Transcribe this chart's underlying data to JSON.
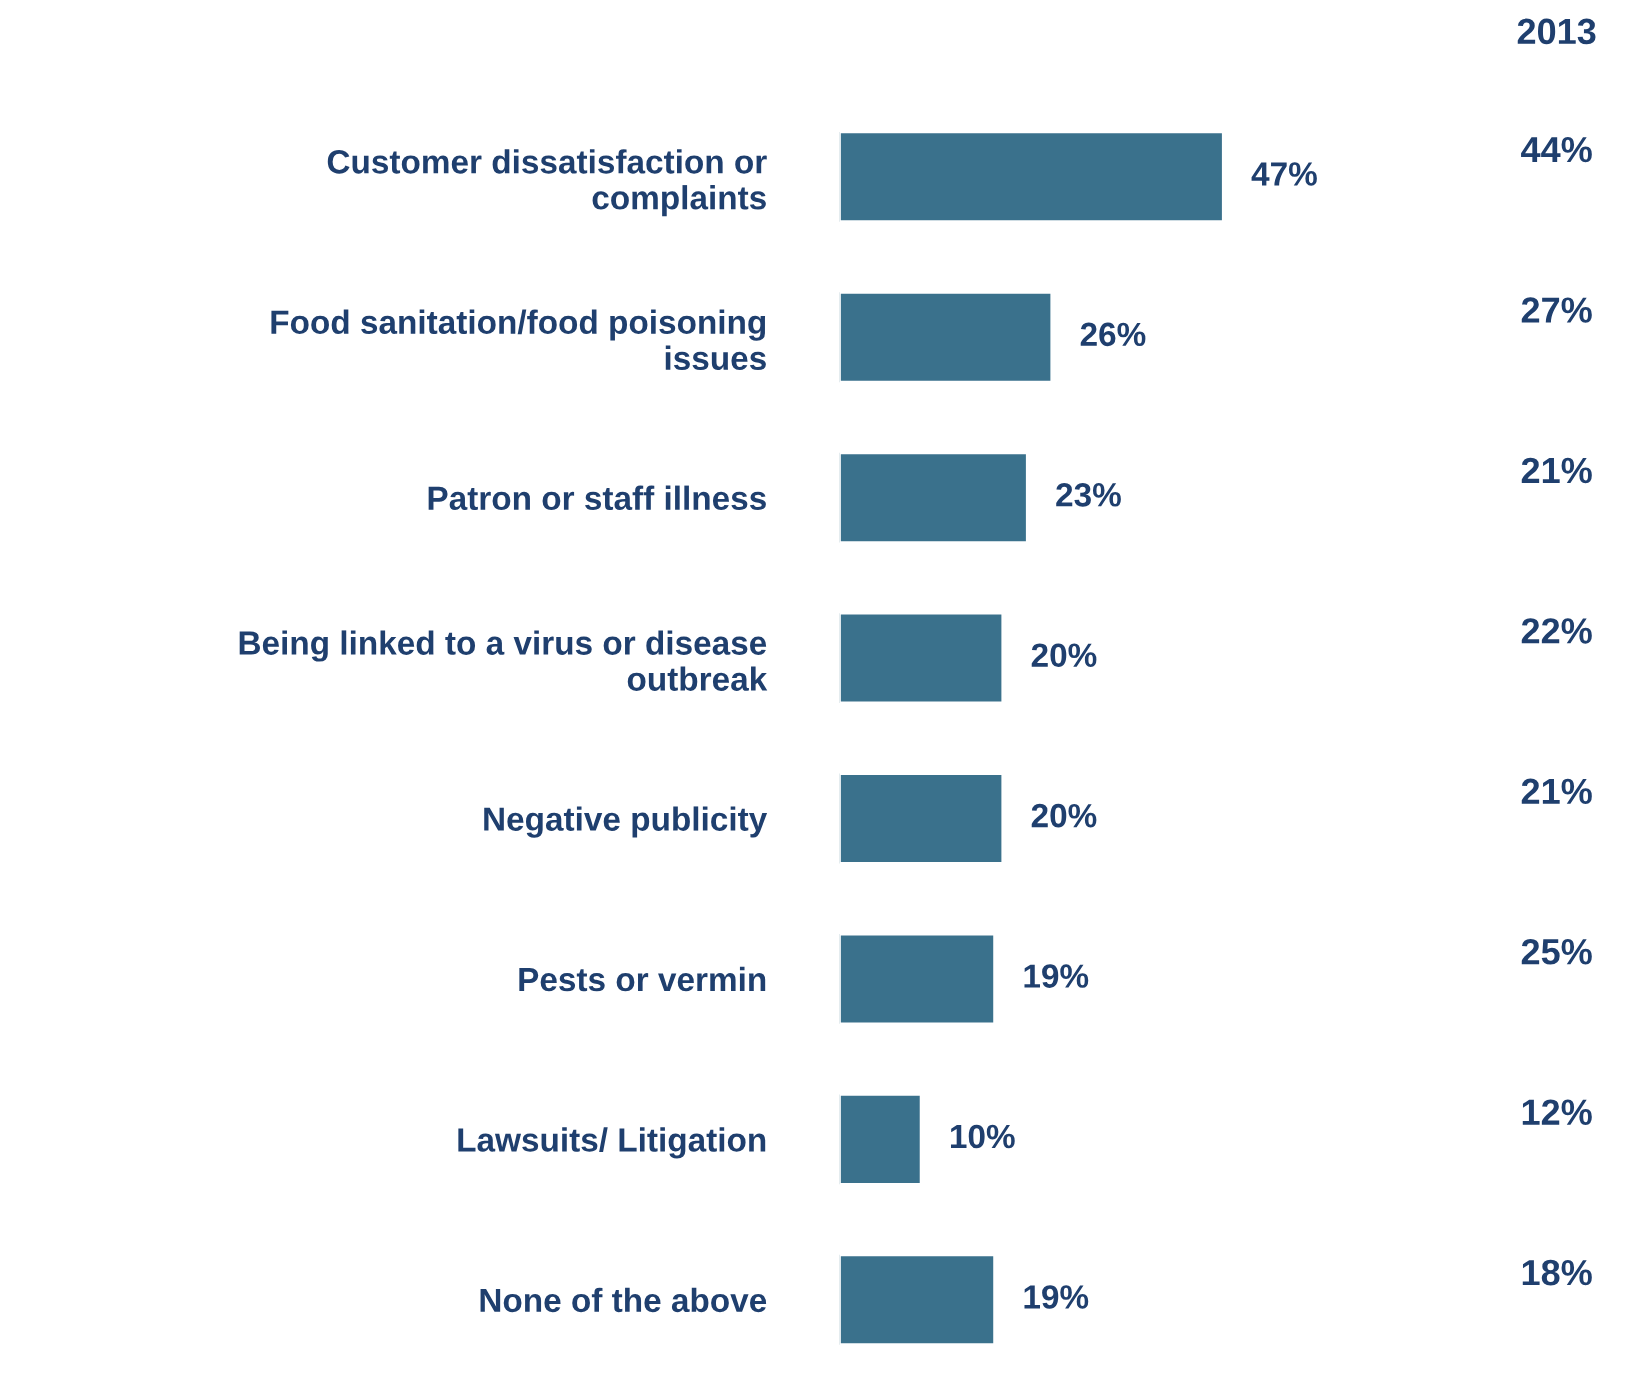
{
  "chart_data": {
    "type": "bar",
    "orientation": "horizontal",
    "categories": [
      "Customer dissatisfaction or\ncomplaints",
      "Food sanitation/food poisoning\nissues",
      "Patron or staff illness",
      "Being linked to a virus or disease\noutbreak",
      "Negative publicity",
      "Pests or vermin",
      "Lawsuits/ Litigation",
      "None of the above"
    ],
    "values": [
      47,
      26,
      23,
      20,
      20,
      19,
      10,
      19
    ],
    "value_labels": [
      "47%",
      "26%",
      "23%",
      "20%",
      "20%",
      "19%",
      "10%",
      "19%"
    ],
    "color": "#3a718c",
    "grid": false,
    "legend": false,
    "annotations": [
      "2013",
      "44%",
      "27%",
      "21%",
      "22%",
      "21%",
      "25%",
      "12%",
      "18%"
    ]
  }
}
